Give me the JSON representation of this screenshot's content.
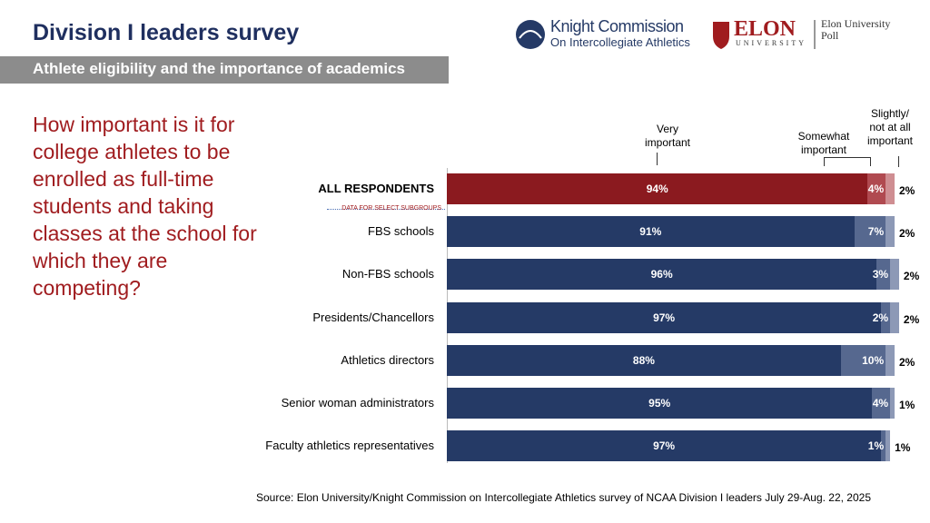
{
  "header": {
    "title": "Division I leaders survey",
    "subtitle": "Athlete eligibility and the importance of academics"
  },
  "logos": {
    "knight_line1": "Knight Commission",
    "knight_line2": "On Intercollegiate Athletics",
    "elon_name": "ELON",
    "elon_sub": "UNIVERSITY",
    "elon_poll": "Elon University\nPoll"
  },
  "question": "How important is it for college athletes to be enrolled as full-time students and taking classes at the school for which they are competing?",
  "chart_data": {
    "type": "bar",
    "orientation": "horizontal",
    "stacked": true,
    "categories": [
      "ALL RESPONDENTS",
      "FBS schools",
      "Non-FBS schools",
      "Presidents/Chancellors",
      "Athletics directors",
      "Senior woman administrators",
      "Faculty athletics representatives"
    ],
    "subgroup_note": "DATA FOR SELECT SUBGROUPS",
    "highlight_row": 0,
    "series": [
      {
        "name": "Very\nimportant",
        "color": "#253a66",
        "highlight_color": "#8b1a1f",
        "values": [
          94,
          91,
          96,
          97,
          88,
          95,
          97
        ],
        "value_labels": [
          "94%",
          "91%",
          "96%",
          "97%",
          "88%",
          "95%",
          "97%"
        ]
      },
      {
        "name": "Somewhat\nimportant",
        "color": "#56688f",
        "highlight_color": "#b04a50",
        "values": [
          4,
          7,
          3,
          2,
          10,
          4,
          1
        ],
        "value_labels": [
          "4%",
          "7%",
          "3%",
          "2%",
          "10%",
          "4%",
          "1%"
        ]
      },
      {
        "name": "Slightly/\nnot at all\nimportant",
        "color": "#8d99b6",
        "highlight_color": "#cf8e92",
        "values": [
          2,
          2,
          2,
          2,
          2,
          1,
          1
        ],
        "value_labels": [
          "2%",
          "2%",
          "2%",
          "2%",
          "2%",
          "1%",
          "1%"
        ]
      }
    ]
  },
  "source": "Source: Elon University/Knight Commission on Intercollegiate Athletics survey of NCAA Division I leaders July 29-Aug. 22, 2025"
}
